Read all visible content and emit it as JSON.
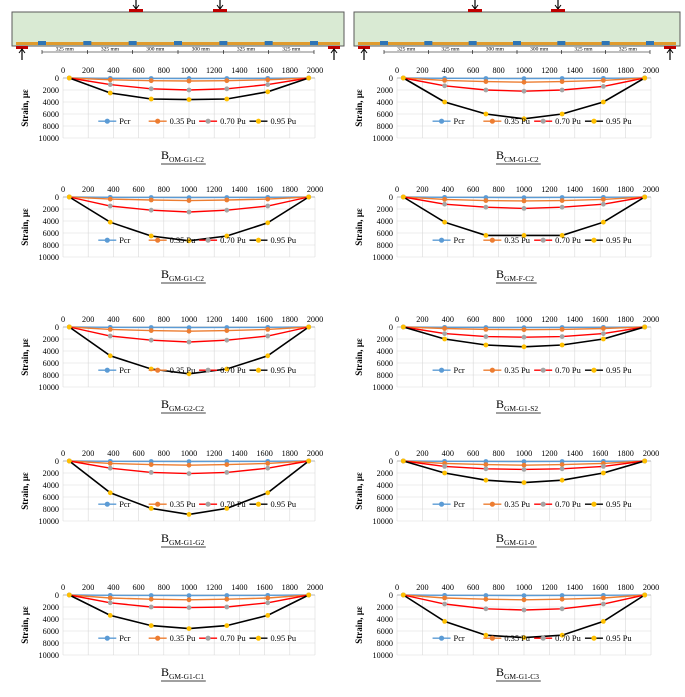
{
  "colors": {
    "pcr": "#5b9bd5",
    "pu035": "#ed7d31",
    "pu070": "#ff0000",
    "pu095": "#000000",
    "m070": "#a5a5a5",
    "m095": "#ffc000"
  },
  "beam_diagrams": [
    {
      "dims": [
        "325 mm",
        "325 mm",
        "300 mm",
        "300 mm",
        "325 mm",
        "325 mm"
      ]
    },
    {
      "dims": [
        "325 mm",
        "325 mm",
        "300 mm",
        "300 mm",
        "325 mm",
        "325 mm"
      ]
    }
  ],
  "chart_data": [
    {
      "type": "line",
      "caption_main": "B",
      "caption_sub": "OM-G1-C2",
      "xlabel": "",
      "ylabel": "Strain, µε",
      "x_ticks": [
        "0",
        "200",
        "400",
        "600",
        "800",
        "1000",
        "1200",
        "1400",
        "1600",
        "1800",
        "2000"
      ],
      "y_ticks": [
        "0",
        "2000",
        "4000",
        "6000",
        "8000",
        "10000"
      ],
      "xlim": [
        0,
        2000
      ],
      "ylim": [
        0,
        10000
      ],
      "y_inverted": true,
      "legend": [
        "Pcr",
        "0.35 Pu",
        "0.70 Pu",
        "0.95 Pu"
      ],
      "x": [
        50,
        375,
        700,
        1000,
        1300,
        1625,
        1950
      ],
      "series": [
        {
          "name": "Pcr",
          "values": [
            0,
            60,
            80,
            90,
            80,
            60,
            0
          ]
        },
        {
          "name": "0.35 Pu",
          "values": [
            0,
            300,
            450,
            500,
            450,
            300,
            0
          ]
        },
        {
          "name": "0.70 Pu",
          "values": [
            0,
            1100,
            1800,
            2000,
            1800,
            1100,
            0
          ]
        },
        {
          "name": "0.95 Pu",
          "values": [
            0,
            2500,
            3500,
            3600,
            3500,
            2300,
            0
          ]
        }
      ]
    },
    {
      "type": "line",
      "caption_main": "B",
      "caption_sub": "CM-G1-C2",
      "xlabel": "",
      "ylabel": "Strain, µε",
      "x_ticks": [
        "0",
        "200",
        "400",
        "600",
        "800",
        "1000",
        "1200",
        "1400",
        "1600",
        "1800",
        "2000"
      ],
      "y_ticks": [
        "0",
        "2000",
        "4000",
        "6000",
        "8000",
        "10000"
      ],
      "xlim": [
        0,
        2000
      ],
      "ylim": [
        0,
        10000
      ],
      "y_inverted": true,
      "legend": [
        "Pcr",
        "0.35 Pu",
        "0.70 Pu",
        "0.95 Pu"
      ],
      "x": [
        50,
        375,
        700,
        1000,
        1300,
        1625,
        1950
      ],
      "series": [
        {
          "name": "Pcr",
          "values": [
            0,
            60,
            80,
            100,
            80,
            60,
            0
          ]
        },
        {
          "name": "0.35 Pu",
          "values": [
            0,
            400,
            600,
            700,
            600,
            400,
            0
          ]
        },
        {
          "name": "0.70 Pu",
          "values": [
            0,
            1300,
            2000,
            2200,
            2000,
            1400,
            0
          ]
        },
        {
          "name": "0.95 Pu",
          "values": [
            0,
            4000,
            6000,
            6800,
            6000,
            4000,
            0
          ]
        }
      ]
    },
    {
      "type": "line",
      "caption_main": "B",
      "caption_sub": "GM-G1-C2",
      "xlabel": "",
      "ylabel": "Strain, µε",
      "x_ticks": [
        "0",
        "200",
        "400",
        "600",
        "800",
        "1000",
        "1200",
        "1400",
        "1600",
        "1800",
        "2000"
      ],
      "y_ticks": [
        "0",
        "2000",
        "4000",
        "6000",
        "8000",
        "10000"
      ],
      "xlim": [
        0,
        2000
      ],
      "ylim": [
        0,
        10000
      ],
      "y_inverted": true,
      "legend": [
        "Pcr",
        "0.35 Pu",
        "0.70 Pu",
        "0.95 Pu"
      ],
      "x": [
        50,
        375,
        700,
        1000,
        1300,
        1625,
        1950
      ],
      "series": [
        {
          "name": "Pcr",
          "values": [
            0,
            60,
            80,
            100,
            80,
            60,
            0
          ]
        },
        {
          "name": "0.35 Pu",
          "values": [
            0,
            350,
            500,
            600,
            500,
            350,
            0
          ]
        },
        {
          "name": "0.70 Pu",
          "values": [
            0,
            1500,
            2200,
            2500,
            2200,
            1500,
            0
          ]
        },
        {
          "name": "0.95 Pu",
          "values": [
            0,
            4200,
            6500,
            7300,
            6500,
            4300,
            0
          ]
        }
      ]
    },
    {
      "type": "line",
      "caption_main": "B",
      "caption_sub": "GM-F-C2",
      "xlabel": "",
      "ylabel": "Strain, µε",
      "x_ticks": [
        "0",
        "200",
        "400",
        "600",
        "800",
        "1000",
        "1200",
        "1400",
        "1600",
        "1800",
        "2000"
      ],
      "y_ticks": [
        "0",
        "2000",
        "4000",
        "6000",
        "8000",
        "10000"
      ],
      "xlim": [
        0,
        2000
      ],
      "ylim": [
        0,
        10000
      ],
      "y_inverted": true,
      "legend": [
        "Pcr",
        "0.35 Pu",
        "0.70 Pu",
        "0.95 Pu"
      ],
      "x": [
        50,
        375,
        700,
        1000,
        1300,
        1625,
        1950
      ],
      "series": [
        {
          "name": "Pcr",
          "values": [
            0,
            60,
            80,
            100,
            80,
            60,
            0
          ]
        },
        {
          "name": "0.35 Pu",
          "values": [
            0,
            400,
            600,
            650,
            600,
            400,
            0
          ]
        },
        {
          "name": "0.70 Pu",
          "values": [
            0,
            1200,
            1700,
            1900,
            1700,
            1200,
            0
          ]
        },
        {
          "name": "0.95 Pu",
          "values": [
            0,
            4200,
            6400,
            6400,
            6400,
            4200,
            0
          ]
        }
      ]
    },
    {
      "type": "line",
      "caption_main": "B",
      "caption_sub": "GM-G2-C2",
      "xlabel": "",
      "ylabel": "Strain, µε",
      "x_ticks": [
        "0",
        "200",
        "400",
        "600",
        "800",
        "1000",
        "1200",
        "1400",
        "1600",
        "1800",
        "2000"
      ],
      "y_ticks": [
        "0",
        "2000",
        "4000",
        "6000",
        "8000",
        "10000"
      ],
      "xlim": [
        0,
        2000
      ],
      "ylim": [
        0,
        10000
      ],
      "y_inverted": true,
      "legend": [
        "Pcr",
        "0.35 Pu",
        "0.70 Pu",
        "0.95 Pu"
      ],
      "x": [
        50,
        375,
        700,
        1000,
        1300,
        1625,
        1950
      ],
      "series": [
        {
          "name": "Pcr",
          "values": [
            0,
            60,
            80,
            100,
            80,
            60,
            0
          ]
        },
        {
          "name": "0.35 Pu",
          "values": [
            0,
            400,
            600,
            700,
            600,
            400,
            0
          ]
        },
        {
          "name": "0.70 Pu",
          "values": [
            0,
            1500,
            2200,
            2500,
            2200,
            1500,
            0
          ]
        },
        {
          "name": "0.95 Pu",
          "values": [
            0,
            4800,
            7000,
            7800,
            7000,
            4800,
            0
          ]
        }
      ]
    },
    {
      "type": "line",
      "caption_main": "B",
      "caption_sub": "GM-G1-S2",
      "xlabel": "",
      "ylabel": "Strain, µε",
      "x_ticks": [
        "0",
        "200",
        "400",
        "600",
        "800",
        "1000",
        "1200",
        "1400",
        "1600",
        "1800",
        "2000"
      ],
      "y_ticks": [
        "0",
        "2000",
        "4000",
        "6000",
        "8000",
        "10000"
      ],
      "xlim": [
        0,
        2000
      ],
      "ylim": [
        0,
        10000
      ],
      "y_inverted": true,
      "legend": [
        "Pcr",
        "0.35 Pu",
        "0.70 Pu",
        "0.95 Pu"
      ],
      "x": [
        50,
        375,
        700,
        1000,
        1300,
        1625,
        1950
      ],
      "series": [
        {
          "name": "Pcr",
          "values": [
            0,
            60,
            80,
            100,
            80,
            60,
            0
          ]
        },
        {
          "name": "0.35 Pu",
          "values": [
            0,
            250,
            400,
            450,
            400,
            250,
            0
          ]
        },
        {
          "name": "0.70 Pu",
          "values": [
            0,
            1100,
            1600,
            1700,
            1600,
            1100,
            0
          ]
        },
        {
          "name": "0.95 Pu",
          "values": [
            0,
            2000,
            3000,
            3300,
            3000,
            2000,
            0
          ]
        }
      ]
    },
    {
      "type": "line",
      "caption_main": "B",
      "caption_sub": "GM-G1-G2",
      "xlabel": "",
      "ylabel": "Strain, µε",
      "x_ticks": [
        "0",
        "200",
        "400",
        "600",
        "800",
        "1000",
        "1200",
        "1400",
        "1600",
        "1800",
        "2000"
      ],
      "y_ticks": [
        "0",
        "2000",
        "4000",
        "6000",
        "8000",
        "10000"
      ],
      "xlim": [
        0,
        2000
      ],
      "ylim": [
        0,
        10000
      ],
      "y_inverted": true,
      "legend": [
        "Pcr",
        "0.35 Pu",
        "0.70 Pu",
        "0.95 Pu"
      ],
      "x": [
        50,
        375,
        700,
        1000,
        1300,
        1625,
        1950
      ],
      "series": [
        {
          "name": "Pcr",
          "values": [
            0,
            60,
            80,
            100,
            80,
            60,
            0
          ]
        },
        {
          "name": "0.35 Pu",
          "values": [
            0,
            400,
            600,
            700,
            600,
            400,
            0
          ]
        },
        {
          "name": "0.70 Pu",
          "values": [
            0,
            1200,
            1900,
            2100,
            1900,
            1200,
            0
          ]
        },
        {
          "name": "0.95 Pu",
          "values": [
            0,
            5300,
            7900,
            8900,
            7900,
            5300,
            0
          ]
        }
      ]
    },
    {
      "type": "line",
      "caption_main": "B",
      "caption_sub": "GM-G1-0",
      "xlabel": "",
      "ylabel": "Strain, µε",
      "x_ticks": [
        "0",
        "200",
        "400",
        "600",
        "800",
        "1000",
        "1200",
        "1400",
        "1600",
        "1800",
        "2000"
      ],
      "y_ticks": [
        "0",
        "2000",
        "4000",
        "6000",
        "8000",
        "10000"
      ],
      "xlim": [
        0,
        2000
      ],
      "ylim": [
        0,
        10000
      ],
      "y_inverted": true,
      "legend": [
        "Pcr",
        "0.35 Pu",
        "0.70 Pu",
        "0.95 Pu"
      ],
      "x": [
        50,
        375,
        700,
        1000,
        1300,
        1625,
        1950
      ],
      "series": [
        {
          "name": "Pcr",
          "values": [
            0,
            60,
            80,
            100,
            80,
            60,
            0
          ]
        },
        {
          "name": "0.35 Pu",
          "values": [
            0,
            400,
            600,
            700,
            600,
            400,
            0
          ]
        },
        {
          "name": "0.70 Pu",
          "values": [
            0,
            900,
            1300,
            1400,
            1300,
            900,
            0
          ]
        },
        {
          "name": "0.95 Pu",
          "values": [
            0,
            2000,
            3200,
            3600,
            3200,
            2000,
            0
          ]
        }
      ]
    },
    {
      "type": "line",
      "caption_main": "B",
      "caption_sub": "GM-G1-C1",
      "xlabel": "",
      "ylabel": "Strain, µε",
      "x_ticks": [
        "0",
        "200",
        "400",
        "600",
        "800",
        "1000",
        "1200",
        "1400",
        "1600",
        "1800",
        "2000"
      ],
      "y_ticks": [
        "0",
        "2000",
        "4000",
        "6000",
        "8000",
        "10000"
      ],
      "xlim": [
        0,
        2000
      ],
      "ylim": [
        0,
        10000
      ],
      "y_inverted": true,
      "legend": [
        "Pcr",
        "0.35 Pu",
        "0.70 Pu",
        "0.95 Pu"
      ],
      "x": [
        50,
        375,
        700,
        1000,
        1300,
        1625,
        1950
      ],
      "series": [
        {
          "name": "Pcr",
          "values": [
            0,
            60,
            80,
            100,
            80,
            60,
            0
          ]
        },
        {
          "name": "0.35 Pu",
          "values": [
            0,
            500,
            700,
            800,
            700,
            500,
            0
          ]
        },
        {
          "name": "0.70 Pu",
          "values": [
            0,
            1300,
            2000,
            2100,
            2000,
            1300,
            0
          ]
        },
        {
          "name": "0.95 Pu",
          "values": [
            0,
            3400,
            5100,
            5600,
            5100,
            3400,
            0
          ]
        }
      ]
    },
    {
      "type": "line",
      "caption_main": "B",
      "caption_sub": "GM-G1-C3",
      "xlabel": "",
      "ylabel": "Strain, µε",
      "x_ticks": [
        "0",
        "200",
        "400",
        "600",
        "800",
        "1000",
        "1200",
        "1400",
        "1600",
        "1800",
        "2000"
      ],
      "y_ticks": [
        "0",
        "2000",
        "4000",
        "6000",
        "8000",
        "10000"
      ],
      "xlim": [
        0,
        2000
      ],
      "ylim": [
        0,
        10000
      ],
      "y_inverted": true,
      "legend": [
        "Pcr",
        "0.35 Pu",
        "0.70 Pu",
        "0.95 Pu"
      ],
      "x": [
        50,
        375,
        700,
        1000,
        1300,
        1625,
        1950
      ],
      "series": [
        {
          "name": "Pcr",
          "values": [
            0,
            60,
            80,
            100,
            80,
            60,
            0
          ]
        },
        {
          "name": "0.35 Pu",
          "values": [
            0,
            500,
            700,
            800,
            700,
            500,
            0
          ]
        },
        {
          "name": "0.70 Pu",
          "values": [
            0,
            1500,
            2300,
            2500,
            2300,
            1500,
            0
          ]
        },
        {
          "name": "0.95 Pu",
          "values": [
            0,
            4400,
            6700,
            7100,
            6700,
            4400,
            0
          ]
        }
      ]
    }
  ]
}
